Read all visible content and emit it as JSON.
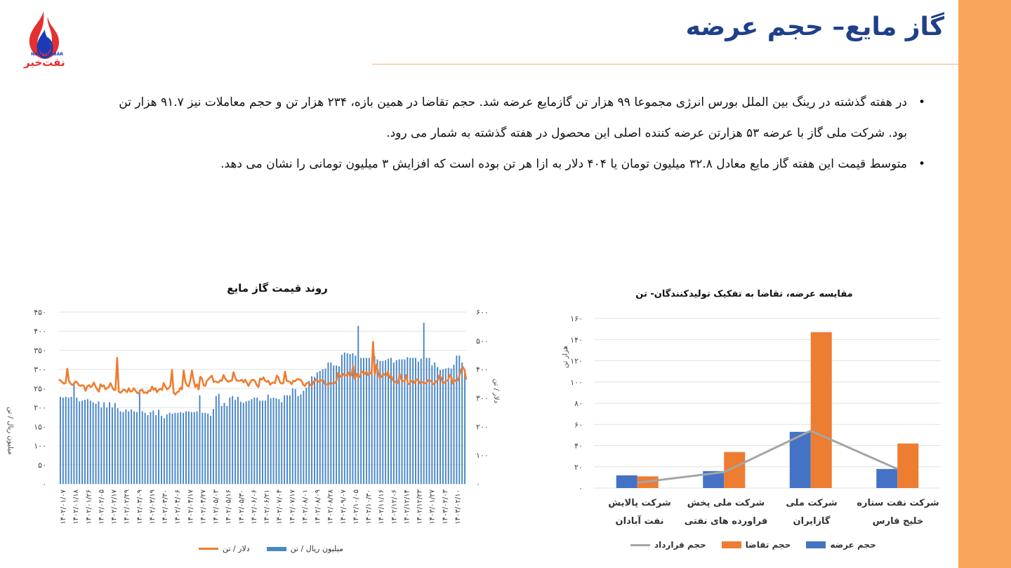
{
  "title": "گاز مایع– حجم عرضه",
  "logo": {
    "brand_latin": "NAFTKHABAR",
    "brand_fa": "نفت‌خبر"
  },
  "bullets": [
    "در هفته گذشته در رینگ بین الملل بورس انرژی مجموعا ۹۹ هزار تن گازمایع عرضه شد. حجم تقاضا در همین بازه، ۲۳۴ هزار تن و حجم معاملات نیز ۹۱.۷ هزار تن بود. شرکت ملی گاز با عرضه ۵۳ هزارتن عرضه کننده اصلی این محصول در هفته گذشته به شمار می رود.",
    "متوسط قیمت این هفته گاز مایع معادل ۳۲.۸ میلیون تومان یا ۴۰۴ دلار به ازا هر تن بوده است که افزایش ۳ میلیون تومانی را نشان می دهد."
  ],
  "colors": {
    "accent_band": "#f7a65c",
    "title": "#1f3f8a",
    "blue": "#4a86c8",
    "orange": "#ed7d31",
    "gray": "#a5a5a5"
  },
  "chart_data": [
    {
      "type": "bar",
      "title": "روند قیمت گاز مایع",
      "ylabel": "میلیون ریال / تن",
      "y2label": "دلار / تن",
      "ylim": [
        0,
        450
      ],
      "y2lim": [
        0,
        600
      ],
      "yticks": [
        "۴۵۰",
        "۴۰۰",
        "۳۵۰",
        "۳۰۰",
        "۲۵۰",
        "۲۰۰",
        "۱۵۰",
        "۱۰۰",
        "۵۰",
        "۰"
      ],
      "y2ticks": [
        "۶۰۰",
        "۵۰۰",
        "۴۰۰",
        "۳۰۰",
        "۲۰۰",
        "۱۰۰",
        "۰"
      ],
      "x_tick_labels": [
        "۱۴۰۲/۰۱/۰۷",
        "۱۴۰۲/۰۱/۱۸",
        "۱۴۰۲/۰۱/۲۶",
        "۱۴۰۲/۰۲/۰۵",
        "۱۴۰۲/۰۲/۱۷",
        "۱۴۰۲/۰۲/۲۹",
        "۱۴۰۲/۰۳/۰۹",
        "۱۴۰۲/۰۳/۱۹",
        "۱۴۰۲/۰۳/۳۰",
        "۱۴۰۲/۰۴/۰۶",
        "۱۴۰۲/۰۴/۱۷",
        "۱۴۰۲/۰۴/۲۷",
        "۱۴۰۲/۰۵/۰۳",
        "۱۴۰۲/۰۵/۱۶",
        "۱۴۰۲/۰۵/۳۰",
        "۱۴۰۲/۰۶/۰۶",
        "۱۴۰۲/۰۶/۲۱",
        "۱۴۰۲/۰۷/۰۴",
        "۱۴۰۲/۰۷/۱۷",
        "۱۴۰۲/۰۸/۰۱",
        "۱۴۰۲/۰۸/۰۹",
        "۱۴۰۲/۰۸/۲۸",
        "۱۴۰۲/۰۹/۰۷",
        "۱۴۰۲/۱۰/۰۵",
        "۱۴۰۲/۱۰/۳۰",
        "۱۴۰۲/۱۱/۱۶",
        "۱۴۰۲/۱۲/۰۶",
        "۱۴۰۲/۱۲/۱۴",
        "۱۴۰۲/۱۲/۲۳",
        "۱۴۰۳/۰۱/۲۷",
        "۱۴۰۳/۰۲/۰۳",
        "۱۴۰۳/۰۲/۱۰"
      ],
      "series": [
        {
          "name": "میلیون ریال / تن",
          "axis": "left",
          "values": [
            228,
            226,
            228,
            226,
            228,
            262,
            226,
            216,
            218,
            220,
            222,
            218,
            214,
            210,
            216,
            200,
            214,
            200,
            214,
            200,
            212,
            198,
            190,
            188,
            195,
            190,
            195,
            190,
            188,
            246,
            190,
            186,
            180,
            188,
            192,
            180,
            194,
            178,
            172,
            182,
            186,
            184,
            186,
            186,
            188,
            186,
            190,
            190,
            188,
            188,
            190,
            232,
            186,
            186,
            184,
            178,
            196,
            230,
            236,
            204,
            212,
            204,
            226,
            230,
            220,
            228,
            215,
            212,
            216,
            218,
            222,
            226,
            226,
            218,
            218,
            218,
            234,
            224,
            226,
            224,
            222,
            214,
            232,
            232,
            232,
            250,
            248,
            230,
            234,
            244,
            252,
            270,
            282,
            280,
            292,
            296,
            300,
            302,
            318,
            318,
            310,
            310,
            308,
            338,
            344,
            342,
            340,
            342,
            336,
            414,
            330,
            330,
            330,
            330,
            316,
            334,
            326,
            322,
            322,
            324,
            328,
            330,
            318,
            324,
            326,
            326,
            326,
            332,
            330,
            330,
            330,
            320,
            328,
            422,
            330,
            330,
            310,
            318,
            306,
            298,
            300,
            302,
            304,
            302,
            312,
            336,
            336,
            318,
            298
          ]
        },
        {
          "name": "دلار / تن",
          "axis": "right",
          "values": [
            365,
            360,
            355,
            350,
            352,
            402,
            358,
            350,
            345,
            350,
            358,
            354,
            344,
            342,
            345,
            342,
            325,
            340,
            345,
            338,
            342,
            354,
            340,
            330,
            322,
            348,
            340,
            344,
            330,
            335,
            338,
            352,
            338,
            328,
            328,
            440,
            322,
            318,
            324,
            330,
            326,
            320,
            334,
            322,
            324,
            334,
            326,
            318,
            316,
            326,
            330,
            318,
            320,
            316,
            326,
            324,
            340,
            328,
            334,
            320,
            328,
            332,
            328,
            352,
            340,
            330,
            334,
            342,
            398,
            318,
            312,
            320,
            322,
            336,
            330,
            396,
            358,
            344,
            340,
            360,
            396,
            360,
            338,
            348,
            330,
            374,
            368,
            344,
            342,
            360,
            366,
            372,
            378,
            356,
            358,
            356,
            354,
            362,
            360,
            380,
            368,
            360,
            356,
            360,
            360,
            390,
            372,
            360,
            360,
            360,
            364,
            354,
            364,
            354,
            342,
            354,
            362,
            364,
            358,
            345,
            338,
            368,
            364,
            372,
            360,
            356,
            360,
            346,
            352,
            354,
            352,
            378,
            372,
            354,
            350,
            352,
            392,
            360,
            358,
            356,
            348,
            360,
            358,
            364,
            366,
            364,
            360,
            346,
            342,
            352,
            352,
            348,
            342,
            356,
            360,
            366,
            356,
            358,
            362,
            362,
            348,
            348,
            346,
            352,
            352,
            350,
            352,
            360,
            388,
            378,
            372,
            384,
            378,
            380,
            390,
            376,
            380,
            412,
            366,
            384,
            372,
            374,
            394,
            388,
            384,
            392,
            380,
            388,
            384,
            496,
            380,
            416,
            392,
            370,
            374,
            386,
            380,
            378,
            392,
            370,
            376,
            360,
            358,
            352,
            352,
            384,
            364,
            358,
            360,
            380,
            348,
            350,
            358,
            362,
            352,
            362,
            366,
            352,
            356,
            354,
            352,
            352,
            362,
            362,
            358,
            348,
            350,
            358,
            362,
            380,
            370,
            350,
            354,
            360,
            360,
            380,
            374,
            350,
            362,
            358,
            362,
            380,
            400,
            408,
            398,
            364
          ]
        }
      ],
      "legend": [
        "میلیون ریال / تن",
        "دلار / تن"
      ],
      "legend_position": "bottom",
      "grid": true
    },
    {
      "type": "bar",
      "title": "مقایسه عرضه، تقاضا به تفکیک تولیدکنندگان- تن",
      "ylabel": "هزار تن",
      "ylim": [
        0,
        160
      ],
      "yticks": [
        "۱۶۰",
        "۱۴۰",
        "۱۲۰",
        "۱۰۰",
        "۸۰",
        "۶۰",
        "۴۰",
        "۲۰",
        "۰"
      ],
      "categories": [
        "شرکت پالایش نفت آبادان",
        "شرکت ملی پخش فراورده های نفتی",
        "شرکت ملی گازایران",
        "شرکت نفت ستاره خلیج فارس"
      ],
      "series": [
        {
          "name": "حجم عرضه",
          "values": [
            12,
            16,
            53,
            18
          ]
        },
        {
          "name": "حجم تقاضا",
          "values": [
            11,
            34,
            147,
            42
          ]
        },
        {
          "name": "حجم قرارداد",
          "type": "line",
          "values": [
            5,
            15,
            54,
            18
          ]
        }
      ],
      "legend_position": "bottom",
      "grid": true
    }
  ]
}
